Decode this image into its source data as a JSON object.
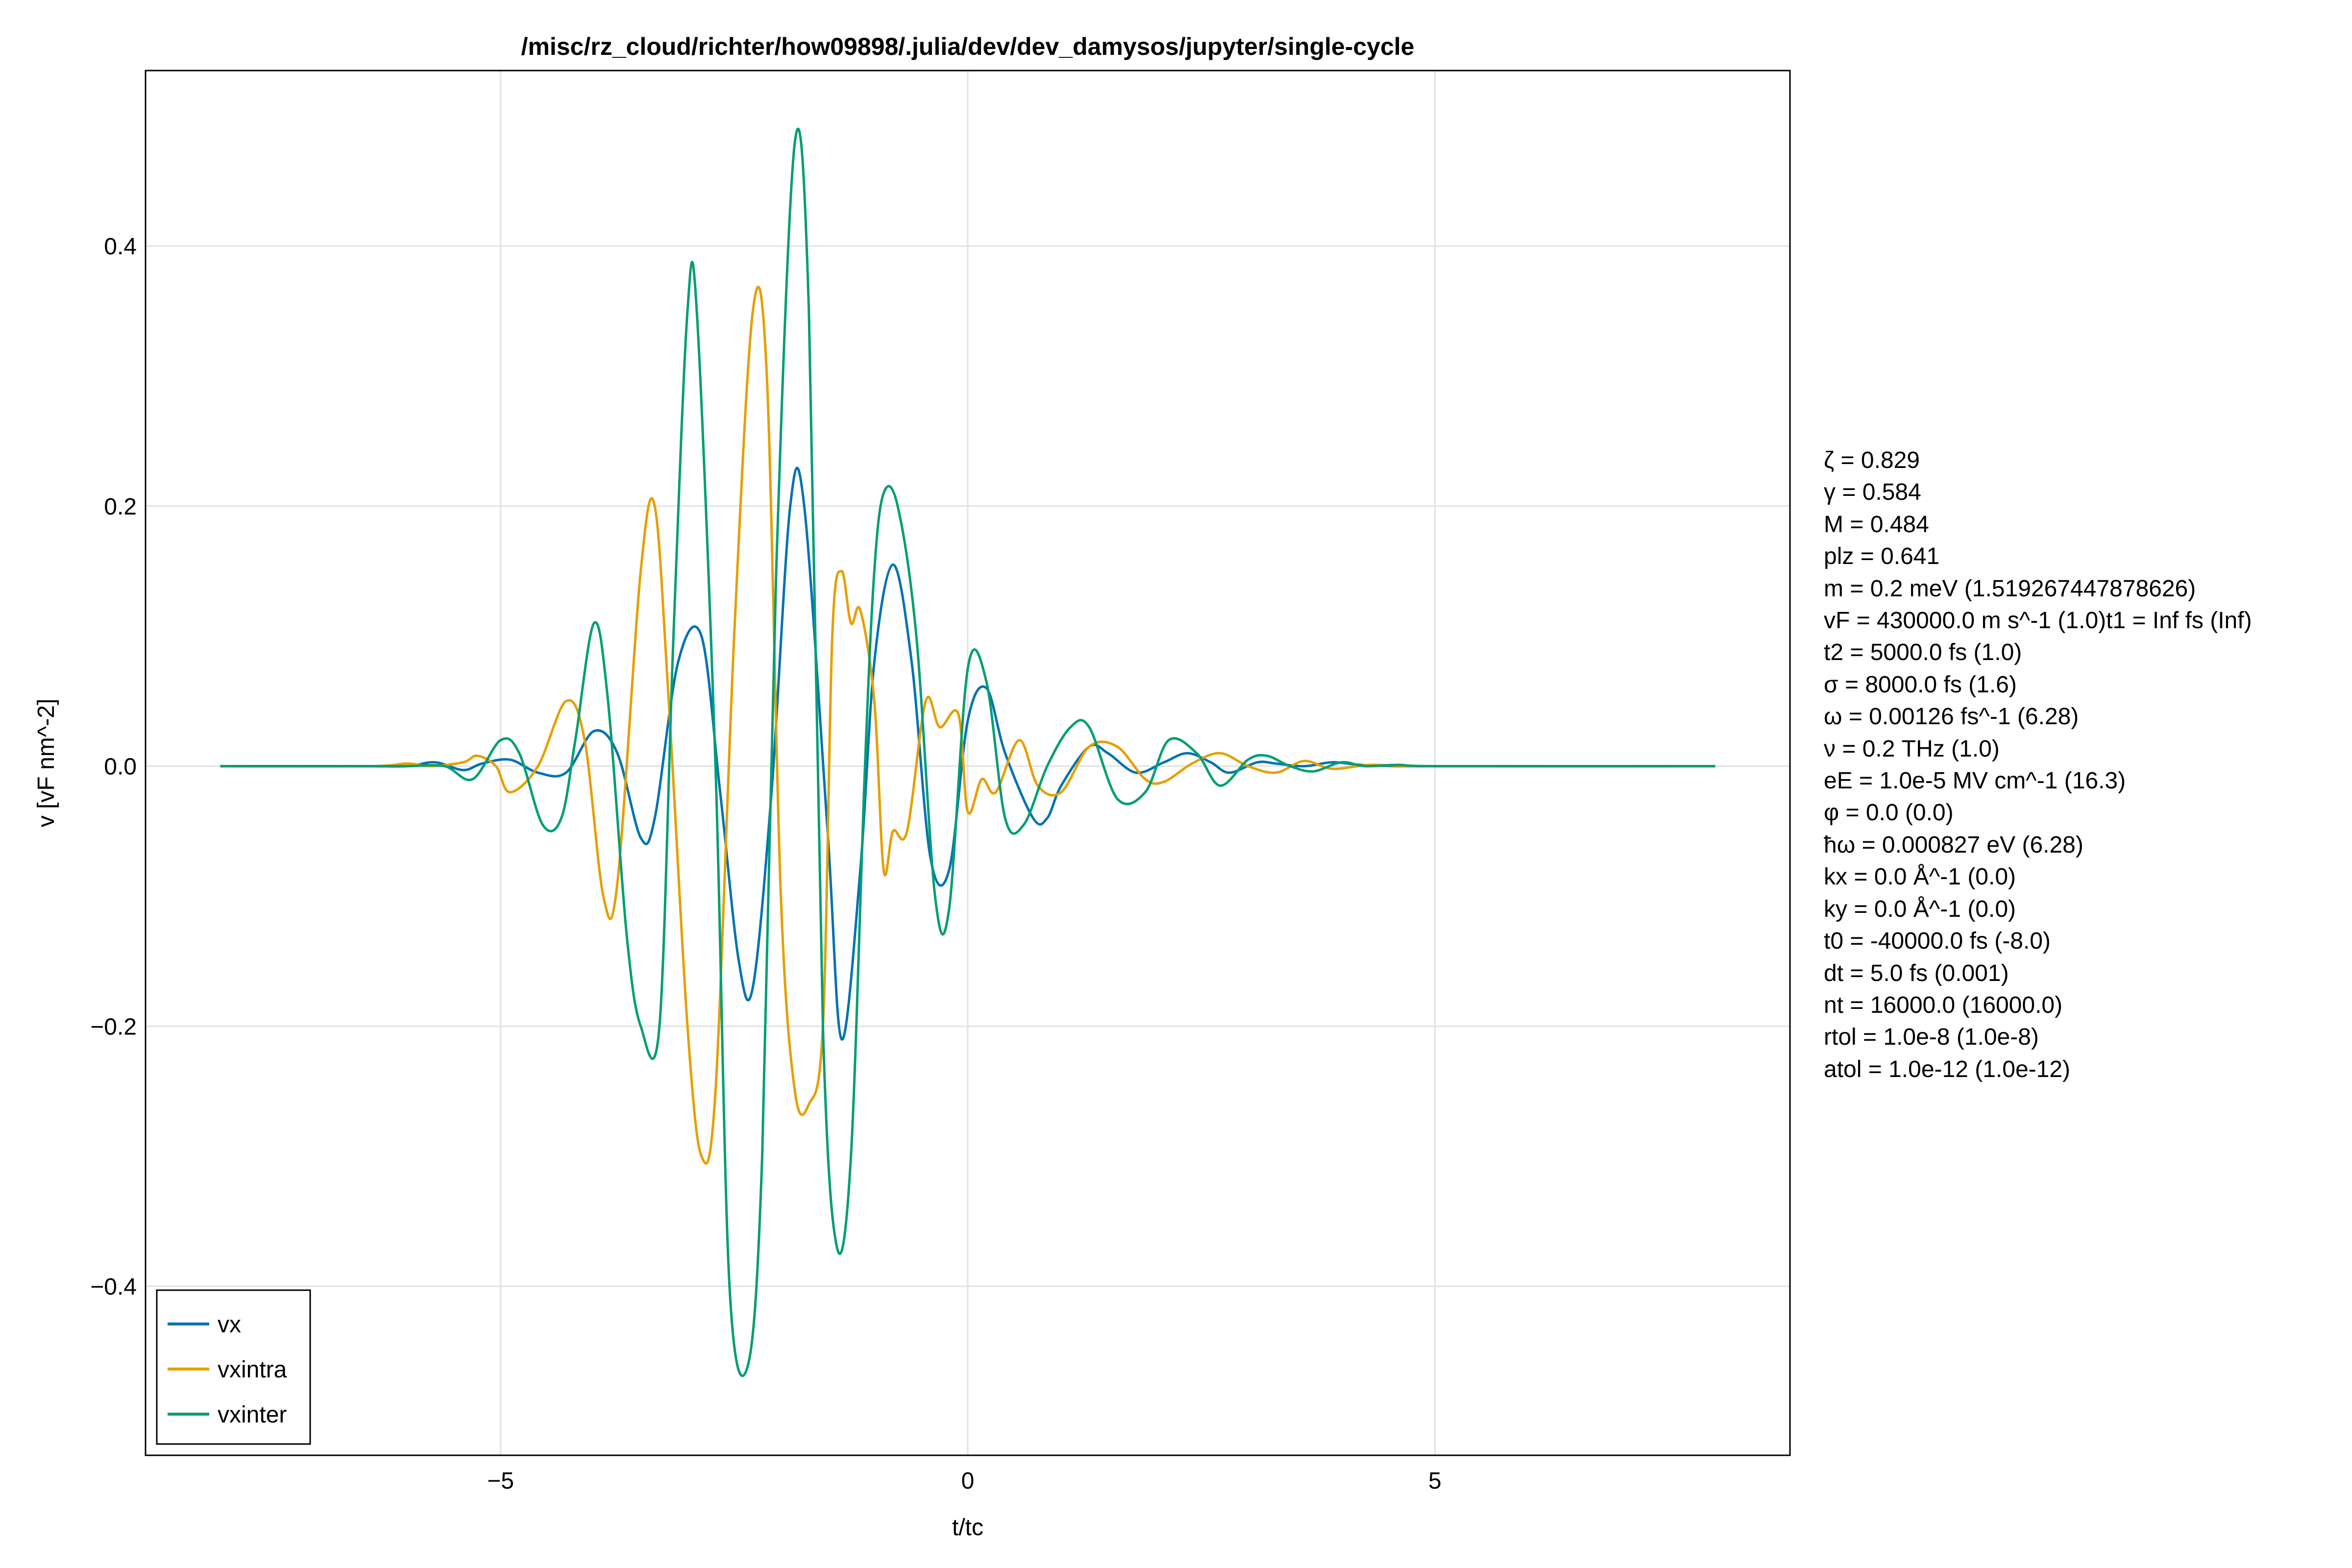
{
  "chart_data": {
    "type": "line",
    "title": "/misc/rz_cloud/richter/how09898/.julia/dev/dev_damysos/jupyter/single-cycle",
    "xlabel": "t/tc",
    "ylabel": "v [vF nm^-2]",
    "xlim": [
      -8.8,
      8.8
    ],
    "ylim": [
      -0.53,
      0.535
    ],
    "xticks": [
      -5,
      0,
      5
    ],
    "xtick_labels": [
      "−5",
      "0",
      "5"
    ],
    "yticks": [
      -0.4,
      -0.2,
      0.0,
      0.2,
      0.4
    ],
    "ytick_labels": [
      "−0.4",
      "−0.2",
      "0.0",
      "0.2",
      "0.4"
    ],
    "grid": true,
    "legend_position": "bottom-left",
    "series": [
      {
        "name": "vx",
        "color": "#0072b2",
        "x": [
          -8.0,
          -6.5,
          -6.0,
          -5.7,
          -5.4,
          -5.2,
          -4.9,
          -4.6,
          -4.3,
          -4.0,
          -3.75,
          -3.5,
          -3.35,
          -3.1,
          -2.85,
          -2.65,
          -2.45,
          -2.3,
          -2.1,
          -1.9,
          -1.75,
          -1.5,
          -1.35,
          -1.15,
          -1.0,
          -0.8,
          -0.6,
          -0.4,
          -0.2,
          0.0,
          0.2,
          0.4,
          0.7,
          0.85,
          1.0,
          1.3,
          1.5,
          1.8,
          2.1,
          2.35,
          2.6,
          2.8,
          3.1,
          3.3,
          3.6,
          3.9,
          4.2,
          4.6,
          5.0,
          8.0
        ],
        "values": [
          0.0,
          0.0,
          0.0,
          0.003,
          -0.003,
          0.002,
          0.005,
          -0.005,
          -0.005,
          0.027,
          0.01,
          -0.055,
          -0.04,
          0.08,
          0.1,
          -0.02,
          -0.15,
          -0.17,
          -0.02,
          0.2,
          0.2,
          -0.05,
          -0.21,
          -0.08,
          0.08,
          0.155,
          0.08,
          -0.07,
          -0.08,
          0.035,
          0.06,
          0.01,
          -0.04,
          -0.04,
          -0.015,
          0.015,
          0.01,
          -0.005,
          0.003,
          0.01,
          0.003,
          -0.005,
          0.003,
          0.002,
          0.0,
          0.003,
          0.001,
          0.0,
          0.0,
          0.0
        ]
      },
      {
        "name": "vxintra",
        "color": "#e69f00",
        "x": [
          -8.0,
          -6.4,
          -6.0,
          -5.75,
          -5.4,
          -5.25,
          -5.05,
          -4.9,
          -4.6,
          -4.3,
          -4.1,
          -3.9,
          -3.75,
          -3.5,
          -3.35,
          -3.2,
          -3.0,
          -2.85,
          -2.7,
          -2.5,
          -2.3,
          -2.15,
          -2.0,
          -1.85,
          -1.7,
          -1.55,
          -1.45,
          -1.35,
          -1.25,
          -1.15,
          -1.0,
          -0.9,
          -0.8,
          -0.65,
          -0.45,
          -0.3,
          -0.1,
          0.0,
          0.15,
          0.3,
          0.55,
          0.75,
          1.0,
          1.3,
          1.6,
          1.9,
          2.1,
          2.4,
          2.7,
          3.0,
          3.3,
          3.6,
          3.9,
          4.3,
          4.7,
          5.0,
          8.0
        ],
        "values": [
          0.0,
          0.0,
          0.002,
          0.0,
          0.003,
          0.008,
          0.0,
          -0.02,
          0.0,
          0.05,
          0.02,
          -0.1,
          -0.09,
          0.15,
          0.2,
          0.05,
          -0.2,
          -0.3,
          -0.25,
          0.1,
          0.35,
          0.3,
          -0.1,
          -0.25,
          -0.26,
          -0.2,
          0.1,
          0.15,
          0.11,
          0.12,
          0.05,
          -0.08,
          -0.05,
          -0.05,
          0.05,
          0.03,
          0.04,
          -0.035,
          -0.01,
          -0.02,
          0.02,
          -0.015,
          -0.02,
          0.015,
          0.015,
          -0.01,
          -0.012,
          0.002,
          0.01,
          0.0,
          -0.005,
          0.004,
          -0.002,
          0.001,
          0.0,
          0.0,
          0.0
        ]
      },
      {
        "name": "vxinter",
        "color": "#009e73",
        "x": [
          -8.0,
          -6.5,
          -6.0,
          -5.6,
          -5.3,
          -5.0,
          -4.8,
          -4.55,
          -4.35,
          -4.2,
          -4.0,
          -3.85,
          -3.65,
          -3.5,
          -3.3,
          -3.15,
          -3.0,
          -2.9,
          -2.7,
          -2.55,
          -2.35,
          -2.2,
          -2.05,
          -1.85,
          -1.7,
          -1.55,
          -1.4,
          -1.25,
          -1.1,
          -1.0,
          -0.9,
          -0.75,
          -0.55,
          -0.35,
          -0.2,
          0.0,
          0.2,
          0.4,
          0.6,
          0.85,
          1.1,
          1.3,
          1.6,
          1.9,
          2.15,
          2.45,
          2.7,
          3.0,
          3.2,
          3.45,
          3.7,
          4.0,
          4.25,
          4.6,
          5.0,
          8.0
        ],
        "values": [
          0.0,
          0.0,
          0.0,
          0.0,
          -0.01,
          0.02,
          0.01,
          -0.045,
          -0.04,
          0.02,
          0.11,
          0.05,
          -0.13,
          -0.2,
          -0.2,
          0.1,
          0.35,
          0.35,
          0.0,
          -0.4,
          -0.46,
          -0.3,
          0.15,
          0.48,
          0.35,
          -0.2,
          -0.37,
          -0.3,
          0.0,
          0.15,
          0.21,
          0.2,
          0.1,
          -0.1,
          -0.11,
          0.075,
          0.065,
          -0.04,
          -0.045,
          0.0,
          0.03,
          0.03,
          -0.025,
          -0.02,
          0.02,
          0.01,
          -0.015,
          0.005,
          0.008,
          0.0,
          -0.004,
          0.003,
          0.0,
          0.001,
          0.0,
          0.0
        ]
      }
    ]
  },
  "legend": {
    "items": [
      "vx",
      "vxintra",
      "vxinter"
    ]
  },
  "params": [
    "ζ = 0.829",
    "γ = 0.584",
    "M = 0.484",
    "plz = 0.641",
    "m  = 0.2 meV (1.519267447878626)",
    "vF = 430000.0 m s^-1 (1.0)t1 = Inf fs (Inf)",
    "t2 = 5000.0 fs (1.0)",
    "σ = 8000.0 fs (1.6)",
    "ω = 0.00126 fs^-1 (6.28)",
    "ν = 0.2 THz (1.0)",
    "eE = 1.0e-5 MV cm^-1 (16.3)",
    "φ = 0.0 (0.0)",
    "ħω = 0.000827 eV (6.28)",
    "kx = 0.0 Å^-1 (0.0)",
    "ky = 0.0 Å^-1 (0.0)",
    "t0 = -40000.0 fs (-8.0)",
    "dt = 5.0 fs (0.001)",
    "nt = 16000.0 (16000.0)",
    "rtol = 1.0e-8 (1.0e-8)",
    "atol = 1.0e-12 (1.0e-12)"
  ]
}
